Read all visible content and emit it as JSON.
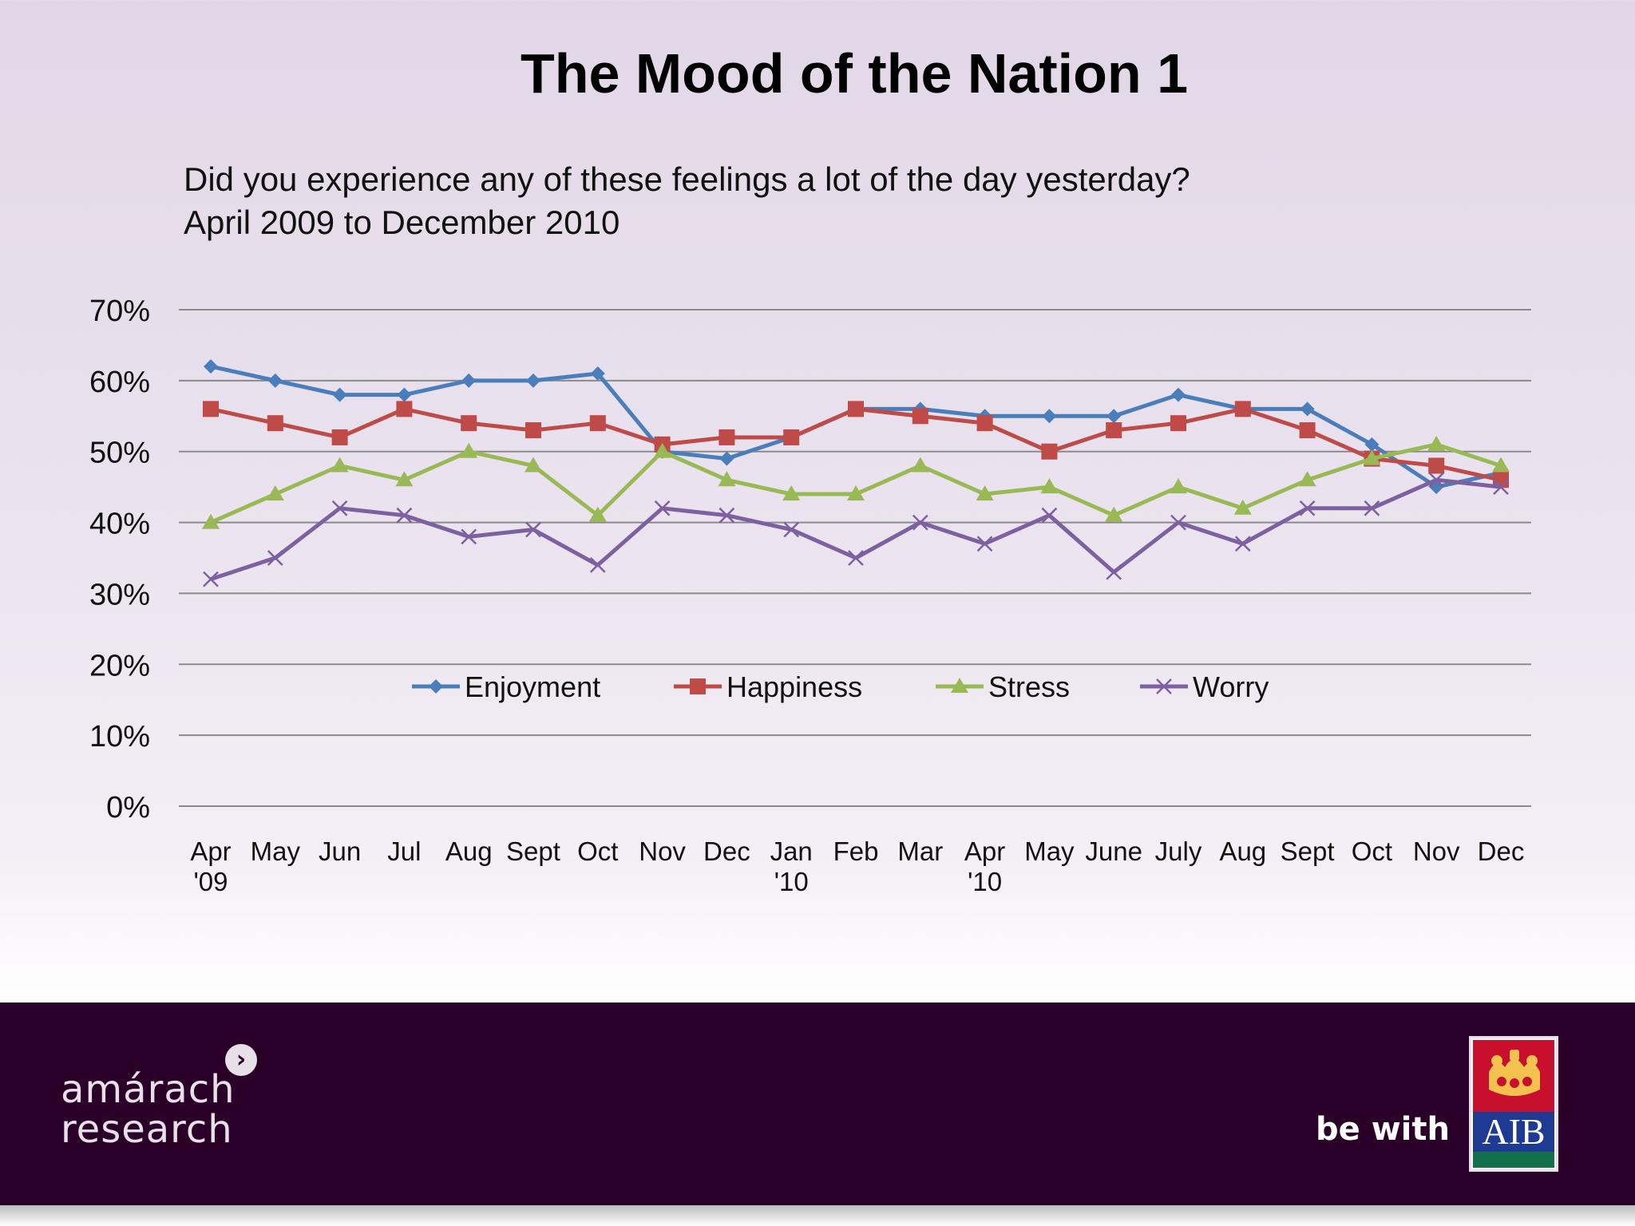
{
  "title": "The Mood of the Nation 1",
  "subtitle_line1": "Did you experience any of these feelings a lot of the day yesterday?",
  "subtitle_line2": "April 2009 to December 2010",
  "footer": {
    "left_logo_line1": "amárach",
    "left_logo_line2": "research",
    "tagline": "be with",
    "right_logo_text": "AIB"
  },
  "chart_data": {
    "type": "line",
    "categories": [
      [
        "Apr",
        "'09"
      ],
      [
        "May"
      ],
      [
        "Jun"
      ],
      [
        "Jul"
      ],
      [
        "Aug"
      ],
      [
        "Sept"
      ],
      [
        "Oct"
      ],
      [
        "Nov"
      ],
      [
        "Dec"
      ],
      [
        "Jan",
        "'10"
      ],
      [
        "Feb"
      ],
      [
        "Mar"
      ],
      [
        "Apr",
        "'10"
      ],
      [
        "May"
      ],
      [
        "June"
      ],
      [
        "July"
      ],
      [
        "Aug"
      ],
      [
        "Sept"
      ],
      [
        "Oct"
      ],
      [
        "Nov"
      ],
      [
        "Dec"
      ]
    ],
    "y_ticks": [
      "0%",
      "10%",
      "20%",
      "30%",
      "40%",
      "50%",
      "60%",
      "70%"
    ],
    "ylim": [
      0,
      70
    ],
    "grid": true,
    "legend_position": "inside-bottom-center",
    "series": [
      {
        "name": "Enjoyment",
        "color": "#4a7ebb",
        "marker": "diamond",
        "values": [
          62,
          60,
          58,
          58,
          60,
          60,
          61,
          50,
          49,
          52,
          56,
          56,
          55,
          55,
          55,
          58,
          56,
          56,
          51,
          45,
          47
        ]
      },
      {
        "name": "Happiness",
        "color": "#be4b48",
        "marker": "square",
        "values": [
          56,
          54,
          52,
          56,
          54,
          53,
          54,
          51,
          52,
          52,
          56,
          55,
          54,
          50,
          53,
          54,
          56,
          53,
          49,
          48,
          46
        ]
      },
      {
        "name": "Stress",
        "color": "#98b954",
        "marker": "triangle",
        "values": [
          40,
          44,
          48,
          46,
          50,
          48,
          41,
          50,
          46,
          44,
          44,
          48,
          44,
          45,
          41,
          45,
          42,
          46,
          49,
          51,
          48
        ]
      },
      {
        "name": "Worry",
        "color": "#7d60a0",
        "marker": "x",
        "values": [
          32,
          35,
          42,
          41,
          38,
          39,
          34,
          42,
          41,
          39,
          35,
          40,
          37,
          41,
          33,
          40,
          37,
          42,
          42,
          46,
          45
        ]
      }
    ]
  }
}
